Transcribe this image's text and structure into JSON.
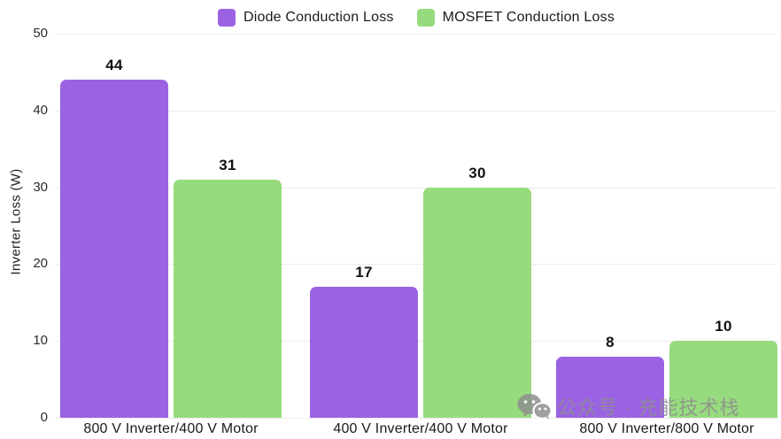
{
  "chart_data": {
    "type": "bar",
    "categories": [
      "800 V Inverter/400 V Motor",
      "400 V Inverter/400 V Motor",
      "800 V Inverter/800 V Motor"
    ],
    "series": [
      {
        "name": "Diode Conduction Loss",
        "color": "#9b63e3",
        "values": [
          44,
          17,
          8
        ]
      },
      {
        "name": "MOSFET Conduction Loss",
        "color": "#97db7f",
        "values": [
          31,
          30,
          10
        ]
      }
    ],
    "title": "",
    "xlabel": "",
    "ylabel": "Inverter Loss (W)",
    "ylim": [
      0,
      50
    ],
    "yticks": [
      0,
      10,
      20,
      30,
      40,
      50
    ],
    "grid": true,
    "legend_position": "top",
    "value_labels": true
  },
  "watermark": {
    "text": "公众号 · 充能技术栈",
    "icon": "wechat-icon",
    "color": "#8f8f8f"
  },
  "colors": {
    "gridline": "#ececec",
    "axis_text": "#2b2b2b",
    "label_text": "#111111"
  }
}
